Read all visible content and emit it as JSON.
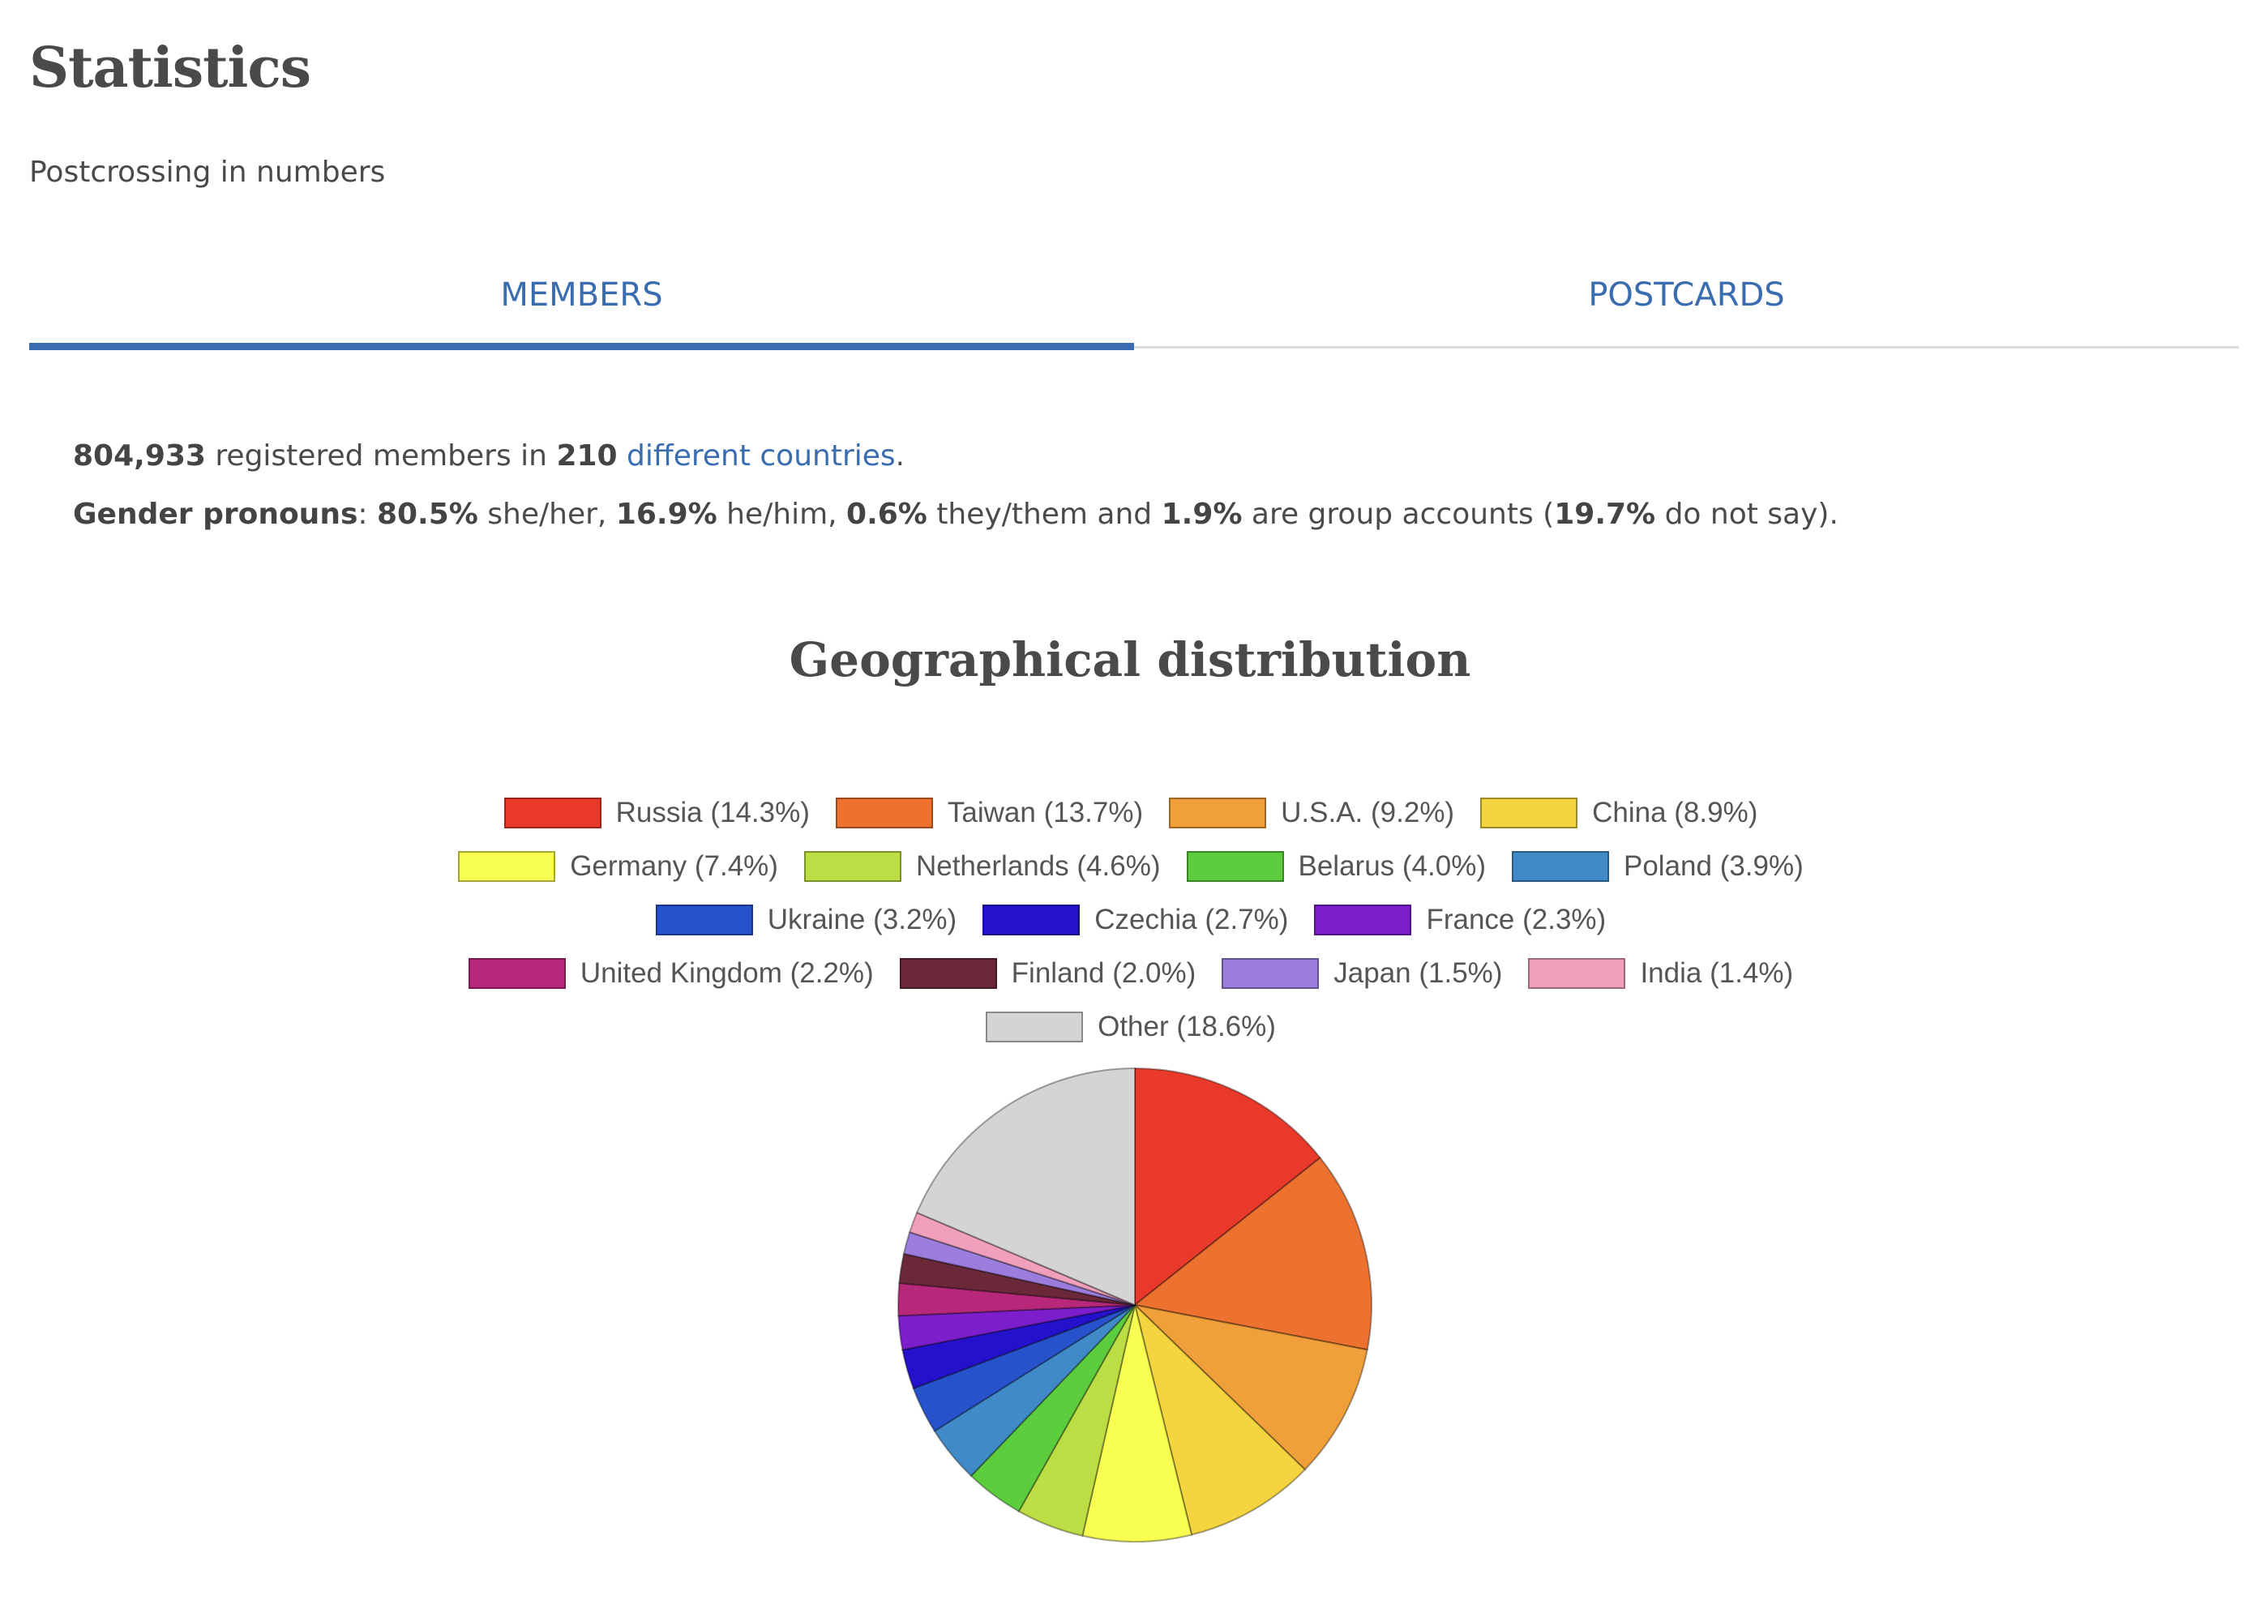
{
  "header": {
    "title": "Statistics",
    "subtitle": "Postcrossing in numbers"
  },
  "tabs": [
    {
      "label": "MEMBERS",
      "active": true
    },
    {
      "label": "POSTCARDS",
      "active": false
    }
  ],
  "members": {
    "count": "804,933",
    "registered_text": " registered members in ",
    "countries_number": "210",
    "countries_text": " different countries",
    "end_period": ".",
    "gender_label": "Gender pronouns",
    "colon": ": ",
    "she_pct": "80.5%",
    "she_text": " she/her, ",
    "he_pct": "16.9%",
    "he_text": " he/him, ",
    "they_pct": "0.6%",
    "they_text": " they/them and ",
    "group_pct": "1.9%",
    "group_text": " are group accounts (",
    "nosay_pct": "19.7%",
    "nosay_text": " do not say)."
  },
  "geo": {
    "title": "Geographical distribution"
  },
  "chart_data": {
    "type": "pie",
    "title": "Geographical distribution",
    "legend_position": "top",
    "slices": [
      {
        "label": "Russia (14.3%)",
        "name": "Russia",
        "value": 14.3,
        "color": "#e8392a"
      },
      {
        "label": "Taiwan (13.7%)",
        "name": "Taiwan",
        "value": 13.7,
        "color": "#ed722f"
      },
      {
        "label": "U.S.A. (9.2%)",
        "name": "U.S.A.",
        "value": 9.2,
        "color": "#f0a03a"
      },
      {
        "label": "China (8.9%)",
        "name": "China",
        "value": 8.9,
        "color": "#f4d43f"
      },
      {
        "label": "Germany (7.4%)",
        "name": "Germany",
        "value": 7.4,
        "color": "#f8ff50"
      },
      {
        "label": "Netherlands (4.6%)",
        "name": "Netherlands",
        "value": 4.6,
        "color": "#bcde44"
      },
      {
        "label": "Belarus (4.0%)",
        "name": "Belarus",
        "value": 4.0,
        "color": "#5ccd3d"
      },
      {
        "label": "Poland (3.9%)",
        "name": "Poland",
        "value": 3.9,
        "color": "#408ac8"
      },
      {
        "label": "Ukraine (3.2%)",
        "name": "Ukraine",
        "value": 3.2,
        "color": "#2653cc"
      },
      {
        "label": "Czechia (2.7%)",
        "name": "Czechia",
        "value": 2.7,
        "color": "#2411cc"
      },
      {
        "label": "France (2.3%)",
        "name": "France",
        "value": 2.3,
        "color": "#7c1ecb"
      },
      {
        "label": "United Kingdom (2.2%)",
        "name": "United Kingdom",
        "value": 2.2,
        "color": "#b8287a"
      },
      {
        "label": "Finland (2.0%)",
        "name": "Finland",
        "value": 2.0,
        "color": "#6a2839"
      },
      {
        "label": "Japan (1.5%)",
        "name": "Japan",
        "value": 1.5,
        "color": "#9a7ddc"
      },
      {
        "label": "India (1.4%)",
        "name": "India",
        "value": 1.4,
        "color": "#f0a0bd"
      },
      {
        "label": "Other (18.6%)",
        "name": "Other",
        "value": 18.6,
        "color": "#d4d4d4"
      }
    ],
    "legend_rows": [
      [
        0,
        1,
        2,
        3
      ],
      [
        4,
        5,
        6,
        7
      ],
      [
        8,
        9,
        10
      ],
      [
        11,
        12,
        13,
        14
      ],
      [
        15
      ]
    ]
  }
}
